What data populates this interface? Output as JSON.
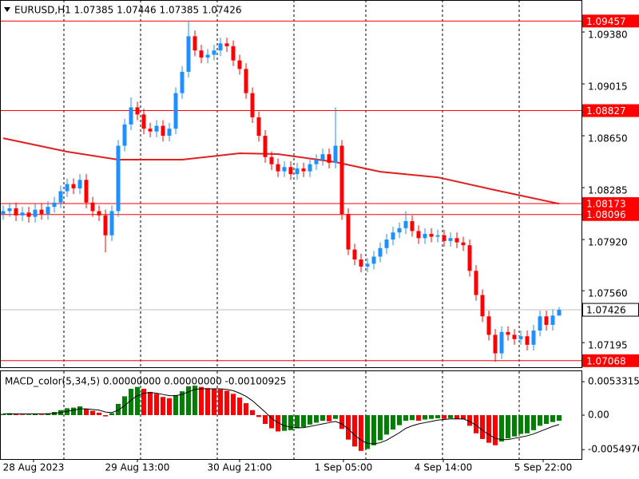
{
  "chart_data": [
    {
      "type": "candlestick",
      "title": "EURUSD,H1  1.07385 1.07446 1.07385 1.07426",
      "xlim": [
        -0.5,
        90.5
      ],
      "ylim": [
        1.07022,
        1.09605
      ],
      "yticks": [
        {
          "value": 1.0938,
          "label": "1.09380"
        },
        1.09015,
        {
          "value": 1.0865,
          "label": "1.08650"
        },
        1.08285,
        {
          "value": 1.0792,
          "label": "1.07920"
        },
        {
          "value": 1.0756,
          "label": "1.07560"
        },
        1.07195
      ],
      "xticks": [
        {
          "value": 4.75,
          "label": "28 Aug 2023"
        },
        {
          "value": 21,
          "label": "29 Aug 13:00"
        },
        {
          "value": 37,
          "label": "30 Aug 21:00"
        },
        {
          "value": 53.25,
          "label": "1 Sep 05:00"
        },
        {
          "value": 68.875,
          "label": "4 Sep 14:00"
        },
        {
          "value": 84.5,
          "label": "5 Sep 22:00"
        }
      ],
      "separators": [
        9.5,
        21.5,
        33.5,
        45.5,
        56.75,
        68.75,
        80.75
      ],
      "up_color": "#1e90ff",
      "down_color": "#ff0000",
      "open": [
        1.081,
        1.0812,
        1.0814,
        1.0809,
        1.0811,
        1.0808,
        1.0813,
        1.081,
        1.0815,
        1.0818,
        1.0826,
        1.0831,
        1.0828,
        1.0834,
        1.0818,
        1.0812,
        1.0809,
        1.0795,
        1.0812,
        1.0858,
        1.0873,
        1.0885,
        1.088,
        1.087,
        1.0868,
        1.0872,
        1.0865,
        1.087,
        1.0895,
        1.091,
        1.0935,
        1.0925,
        1.092,
        1.0922,
        1.0925,
        1.093,
        1.0928,
        1.0918,
        1.0912,
        1.0895,
        1.0878,
        1.0865,
        1.085,
        1.0845,
        1.084,
        1.0843,
        1.0838,
        1.0842,
        1.084,
        1.0845,
        1.0848,
        1.0852,
        1.0846,
        1.0858,
        1.081,
        1.0785,
        1.0778,
        1.0773,
        1.0775,
        1.078,
        1.0786,
        1.0792,
        1.0797,
        1.08,
        1.0805,
        1.0798,
        1.0793,
        1.0796,
        1.0794,
        1.0795,
        1.0791,
        1.0793,
        1.079,
        1.0788,
        1.077,
        1.0753,
        1.0738,
        1.0725,
        1.0712,
        1.0727,
        1.0725,
        1.0722,
        1.0724,
        1.0718,
        1.0728,
        1.0738,
        1.0732,
        1.07385
      ],
      "high": [
        1.0816,
        1.0818,
        1.0818,
        1.0815,
        1.0815,
        1.0817,
        1.0817,
        1.0819,
        1.0822,
        1.083,
        1.0835,
        1.0835,
        1.0838,
        1.0838,
        1.0822,
        1.0816,
        1.0813,
        1.0816,
        1.0862,
        1.0877,
        1.0892,
        1.0889,
        1.0884,
        1.0874,
        1.0876,
        1.0876,
        1.0874,
        1.0899,
        1.0914,
        1.0946,
        1.0939,
        1.0929,
        1.0926,
        1.0929,
        1.0934,
        1.0934,
        1.0932,
        1.0922,
        1.0916,
        1.0899,
        1.0882,
        1.0869,
        1.0854,
        1.0849,
        1.0847,
        1.0847,
        1.0846,
        1.0846,
        1.0849,
        1.0852,
        1.0856,
        1.0856,
        1.0885,
        1.0862,
        1.0814,
        1.0789,
        1.0782,
        1.0779,
        1.0784,
        1.079,
        1.0796,
        1.0801,
        1.0804,
        1.0812,
        1.0809,
        1.0802,
        1.08,
        1.08,
        1.0799,
        1.0799,
        1.0797,
        1.0797,
        1.0794,
        1.0792,
        1.0774,
        1.0757,
        1.0742,
        1.0729,
        1.0731,
        1.0731,
        1.0729,
        1.0728,
        1.0728,
        1.0732,
        1.0742,
        1.0742,
        1.0743,
        1.07446
      ],
      "low": [
        1.0806,
        1.0808,
        1.0805,
        1.0805,
        1.0804,
        1.0804,
        1.0806,
        1.0806,
        1.0811,
        1.0814,
        1.0822,
        1.0824,
        1.0824,
        1.0814,
        1.0808,
        1.0805,
        1.0783,
        1.0791,
        1.0808,
        1.0854,
        1.0869,
        1.0876,
        1.0866,
        1.0864,
        1.0864,
        1.0861,
        1.0861,
        1.0866,
        1.0891,
        1.0906,
        1.0921,
        1.0916,
        1.0916,
        1.0918,
        1.0921,
        1.0924,
        1.0914,
        1.0908,
        1.0891,
        1.0874,
        1.0861,
        1.0846,
        1.0841,
        1.0836,
        1.0836,
        1.0834,
        1.0834,
        1.0836,
        1.0836,
        1.0841,
        1.0844,
        1.0842,
        1.0842,
        1.0806,
        1.0781,
        1.0774,
        1.0769,
        1.0769,
        1.0771,
        1.0776,
        1.0782,
        1.0788,
        1.0793,
        1.0796,
        1.0794,
        1.0789,
        1.0789,
        1.079,
        1.079,
        1.0787,
        1.0787,
        1.0786,
        1.0784,
        1.0766,
        1.0749,
        1.0734,
        1.0721,
        1.0706,
        1.0708,
        1.0721,
        1.0718,
        1.0718,
        1.0714,
        1.0714,
        1.0724,
        1.0728,
        1.0728,
        1.07385
      ],
      "close": [
        1.0812,
        1.0814,
        1.0809,
        1.0811,
        1.0808,
        1.0813,
        1.081,
        1.0815,
        1.0818,
        1.0826,
        1.0831,
        1.0828,
        1.0834,
        1.0818,
        1.0812,
        1.0809,
        1.0795,
        1.0812,
        1.0858,
        1.0873,
        1.0885,
        1.088,
        1.087,
        1.0868,
        1.0872,
        1.0865,
        1.087,
        1.0895,
        1.091,
        1.0935,
        1.0925,
        1.092,
        1.0922,
        1.0925,
        1.093,
        1.0928,
        1.0918,
        1.0912,
        1.0895,
        1.0878,
        1.0865,
        1.085,
        1.0845,
        1.084,
        1.0843,
        1.0838,
        1.0842,
        1.084,
        1.0845,
        1.0848,
        1.0852,
        1.0846,
        1.0858,
        1.081,
        1.0785,
        1.0778,
        1.0773,
        1.0775,
        1.078,
        1.0786,
        1.0792,
        1.0797,
        1.08,
        1.0805,
        1.0798,
        1.0793,
        1.0796,
        1.0794,
        1.0795,
        1.0791,
        1.0793,
        1.079,
        1.0788,
        1.077,
        1.0753,
        1.0738,
        1.0725,
        1.0712,
        1.0727,
        1.0725,
        1.0722,
        1.0724,
        1.0718,
        1.0728,
        1.0738,
        1.0732,
        1.07385,
        1.07426
      ],
      "ma": {
        "color": "#e02020",
        "x": [
          0,
          10,
          18,
          28,
          37,
          43,
          52,
          59,
          68,
          77,
          87
        ],
        "values": [
          1.08633,
          1.08538,
          1.08482,
          1.08482,
          1.08527,
          1.08521,
          1.08465,
          1.08397,
          1.08358,
          1.08268,
          1.08172
        ]
      },
      "levels": {
        "color": "#ff0000",
        "values": [
          1.09457,
          1.08827,
          1.08173,
          1.08096,
          1.07068
        ]
      },
      "current_price": {
        "color": "#c0c0c0",
        "value": 1.07426
      }
    },
    {
      "type": "macd",
      "title": "MACD_color(5,34,5) 0.00000000 0.00000000 -0.00100925",
      "ylim": [
        -0.007,
        0.007
      ],
      "yticks": [
        0.0053315,
        {
          "value": 0,
          "label": "0.00"
        },
        -0.0054976
      ],
      "up_color": "#008000",
      "down_color": "#ff0000",
      "signal_color": "#000000",
      "values": [
        0.0002,
        0.0003,
        0.0002,
        0.0001,
        0.0001,
        0.0002,
        0.0001,
        0.0003,
        0.0005,
        0.0008,
        0.0011,
        0.0012,
        0.0014,
        0.001,
        0.0007,
        0.0004,
        -0.0002,
        0.0003,
        0.0018,
        0.003,
        0.0042,
        0.0045,
        0.0042,
        0.0037,
        0.0034,
        0.0029,
        0.0027,
        0.0032,
        0.0038,
        0.0046,
        0.0047,
        0.0045,
        0.0043,
        0.0042,
        0.0041,
        0.0039,
        0.0034,
        0.0028,
        0.0019,
        0.0008,
        -0.0003,
        -0.0014,
        -0.0021,
        -0.0026,
        -0.0025,
        -0.0024,
        -0.0021,
        -0.0019,
        -0.0015,
        -0.0012,
        -0.0009,
        -0.001,
        -0.0006,
        -0.0022,
        -0.0039,
        -0.005,
        -0.0057,
        -0.0054,
        -0.0048,
        -0.004,
        -0.0031,
        -0.0023,
        -0.0016,
        -0.0009,
        -0.0008,
        -0.0009,
        -0.0007,
        -0.0006,
        -0.0005,
        -0.0006,
        -0.0005,
        -0.0006,
        -0.0007,
        -0.0017,
        -0.0029,
        -0.0038,
        -0.0044,
        -0.0048,
        -0.0042,
        -0.0037,
        -0.0034,
        -0.003,
        -0.0029,
        -0.0024,
        -0.0017,
        -0.0014,
        -0.0011,
        -0.0009
      ],
      "signal": [
        0.0002,
        0.0002,
        0.0002,
        0.0002,
        0.0002,
        0.0002,
        0.0002,
        0.0002,
        0.0003,
        0.0004,
        0.0006,
        0.0008,
        0.001,
        0.001,
        0.0009,
        0.0008,
        0.0005,
        0.0004,
        0.0008,
        0.0015,
        0.0024,
        0.0031,
        0.0035,
        0.0036,
        0.0035,
        0.0033,
        0.0031,
        0.0031,
        0.0033,
        0.0037,
        0.0041,
        0.0042,
        0.0042,
        0.0042,
        0.0042,
        0.0041,
        0.0039,
        0.0035,
        0.003,
        0.0023,
        0.0014,
        0.0005,
        -0.0005,
        -0.0012,
        -0.0017,
        -0.0019,
        -0.002,
        -0.002,
        -0.0018,
        -0.0016,
        -0.0014,
        -0.0012,
        -0.001,
        -0.0014,
        -0.0022,
        -0.0032,
        -0.004,
        -0.0045,
        -0.0046,
        -0.0044,
        -0.004,
        -0.0034,
        -0.0028,
        -0.0021,
        -0.0017,
        -0.0014,
        -0.0012,
        -0.001,
        -0.0008,
        -0.0007,
        -0.0006,
        -0.0006,
        -0.0006,
        -0.001,
        -0.0016,
        -0.0024,
        -0.0031,
        -0.0037,
        -0.0039,
        -0.0039,
        -0.0037,
        -0.0035,
        -0.0033,
        -0.003,
        -0.0026,
        -0.0022,
        -0.0018,
        -0.0015
      ]
    }
  ]
}
